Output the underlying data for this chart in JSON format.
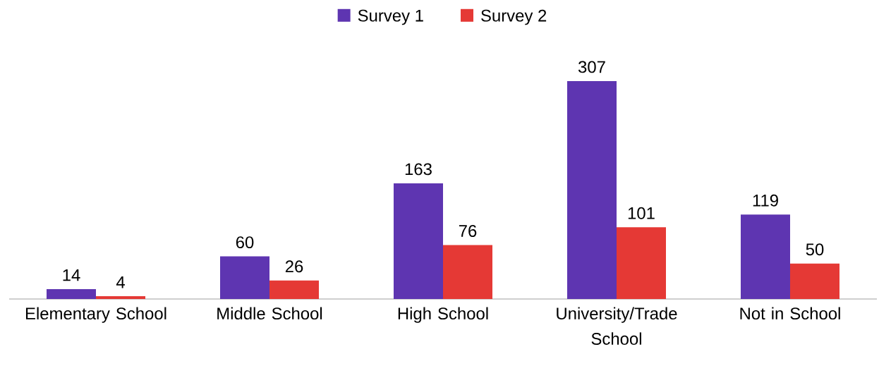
{
  "chart_data": {
    "type": "bar",
    "categories": [
      "Elementary School",
      "Middle School",
      "High School",
      "University/Trade School",
      "Not in School"
    ],
    "series": [
      {
        "name": "Survey 1",
        "color": "#5e35b1",
        "values": [
          14,
          60,
          163,
          307,
          119
        ]
      },
      {
        "name": "Survey 2",
        "color": "#e53935",
        "values": [
          4,
          26,
          76,
          101,
          50
        ]
      }
    ],
    "data_labels": true,
    "legend": "top"
  }
}
